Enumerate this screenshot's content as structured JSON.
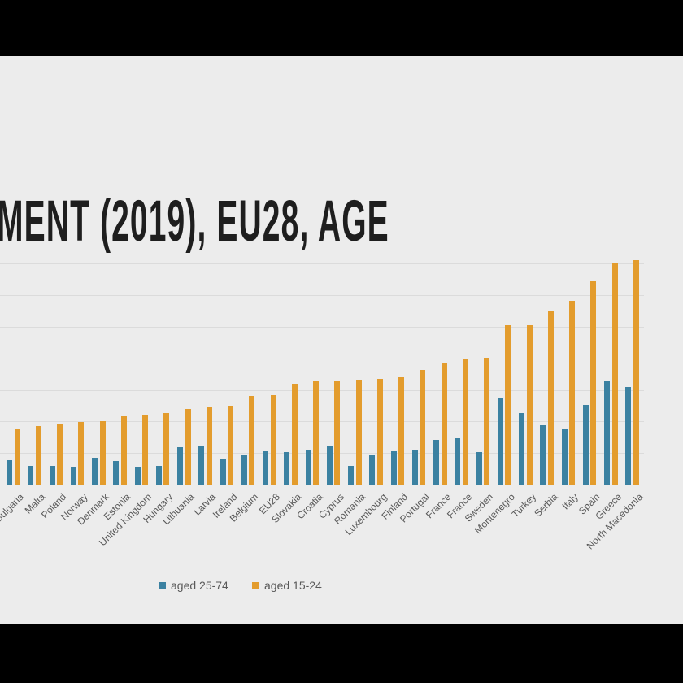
{
  "frame": {
    "top_bar_color": "#000000",
    "bottom_bar_color": "#000000",
    "slide_background": "#ECECEC"
  },
  "title": {
    "text": "MENT (2019), EU28, AGE",
    "color": "#1E1E1E"
  },
  "chart_data": {
    "type": "bar",
    "title": "MENT (2019), EU28, AGE",
    "xlabel": "",
    "ylabel": "",
    "ylim": [
      0,
      40
    ],
    "grid_step": 5,
    "grid": "on",
    "legend_position": "bottom",
    "axis_label_color": "#595959",
    "gridline_color": "#DBDBDB",
    "categories": [
      "Bulgaria",
      "Malta",
      "Poland",
      "Norway",
      "Denmark",
      "Estonia",
      "United Kingdom",
      "Hungary",
      "Lithuania",
      "Latvia",
      "Ireland",
      "Belgium",
      "EU28",
      "Slovakia",
      "Croatia",
      "Cyprus",
      "Romania",
      "Luxembourg",
      "Finland",
      "Portugal",
      "France",
      "France",
      "Sweden",
      "Montenegro",
      "Turkey",
      "Serbia",
      "Italy",
      "Spain",
      "Greece",
      "North Macedonia"
    ],
    "series": [
      {
        "name": "aged 25-74",
        "color": "#3B81A1",
        "values": [
          3.9,
          3.0,
          3.0,
          2.8,
          4.2,
          3.8,
          2.8,
          3.0,
          5.9,
          6.2,
          4.0,
          4.6,
          5.3,
          5.2,
          5.5,
          6.2,
          3.0,
          4.8,
          5.3,
          5.4,
          7.1,
          7.3,
          5.1,
          13.7,
          11.4,
          9.4,
          8.8,
          12.6,
          16.4,
          15.5
        ]
      },
      {
        "name": "aged 15-24",
        "color": "#E39C2D",
        "values": [
          8.8,
          9.3,
          9.7,
          9.9,
          10.1,
          10.8,
          11.1,
          11.3,
          12.0,
          12.4,
          12.5,
          14.0,
          14.2,
          16.0,
          16.4,
          16.5,
          16.6,
          16.8,
          17.0,
          18.2,
          19.3,
          19.8,
          20.1,
          25.3,
          25.3,
          27.4,
          29.1,
          32.3,
          35.2,
          35.6
        ]
      }
    ]
  },
  "legend": {
    "item1": "aged 25-74",
    "item2": "aged 15-24"
  }
}
